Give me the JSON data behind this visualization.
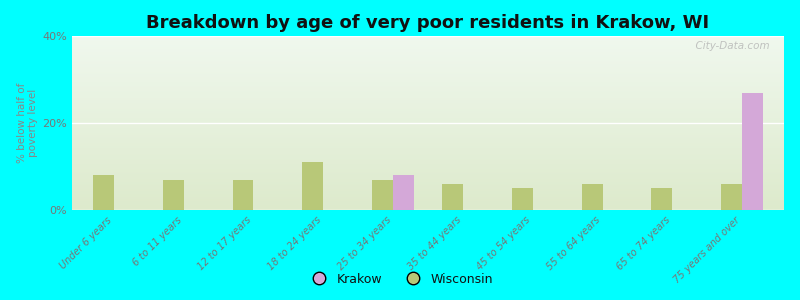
{
  "title": "Breakdown by age of very poor residents in Krakow, WI",
  "ylabel": "% below half of\npoverty level",
  "categories": [
    "Under 6 years",
    "6 to 11 years",
    "12 to 17 years",
    "18 to 24 years",
    "25 to 34 years",
    "35 to 44 years",
    "45 to 54 years",
    "55 to 64 years",
    "65 to 74 years",
    "75 years and over"
  ],
  "krakow_values": [
    0,
    0,
    0,
    0,
    8.0,
    0,
    0,
    0,
    0,
    27.0
  ],
  "wisconsin_values": [
    8.0,
    7.0,
    7.0,
    11.0,
    7.0,
    6.0,
    5.0,
    6.0,
    5.0,
    6.0
  ],
  "krakow_color": "#d4a8d8",
  "wisconsin_color": "#b8c878",
  "background_color": "#00ffff",
  "plot_bg_top": "#f0f8ee",
  "plot_bg_bottom": "#ddeacc",
  "ylim": [
    0,
    40
  ],
  "yticks": [
    0,
    20,
    40
  ],
  "yticklabels": [
    "0%",
    "20%",
    "40%"
  ],
  "title_fontsize": 13,
  "bar_width": 0.3,
  "watermark": "  City-Data.com"
}
